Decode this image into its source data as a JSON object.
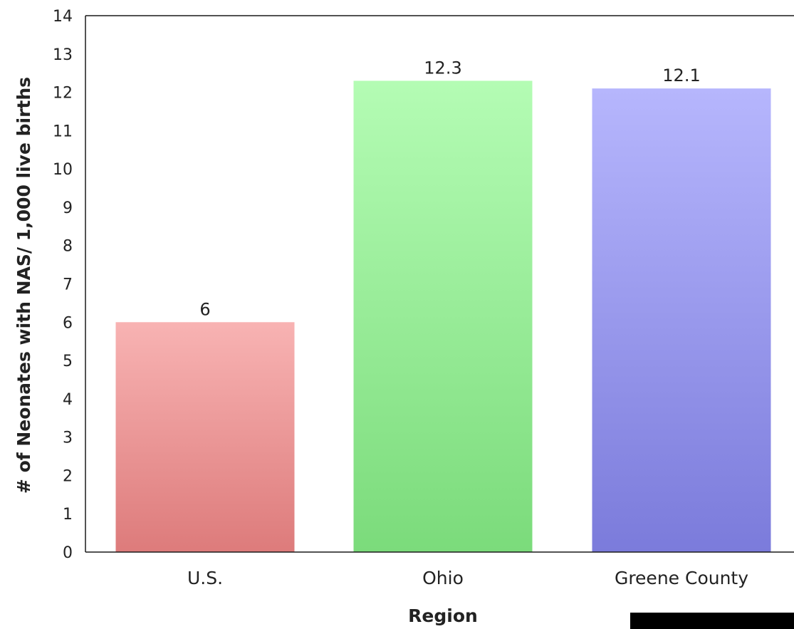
{
  "chart_data": {
    "type": "bar",
    "title": "",
    "xlabel": "Region",
    "ylabel": "# of Neonates with NAS/ 1,000 live births",
    "categories": [
      "U.S.",
      "Ohio",
      "Greene County"
    ],
    "values": [
      6,
      12.3,
      12.1
    ],
    "data_labels": [
      "6",
      "12.3",
      "12.1"
    ],
    "ylim": [
      0,
      14
    ],
    "yticks": [
      "0",
      "1",
      "2",
      "3",
      "4",
      "5",
      "6",
      "7",
      "8",
      "9",
      "10",
      "11",
      "12",
      "13",
      "14"
    ],
    "colors": [
      {
        "top": "#f8b3b3",
        "bottom": "#dd7b7b"
      },
      {
        "top": "#b4fcb4",
        "bottom": "#7bdb7b"
      },
      {
        "top": "#b6b6fd",
        "bottom": "#7b7bdb"
      }
    ],
    "grid": false,
    "legend": "none"
  }
}
